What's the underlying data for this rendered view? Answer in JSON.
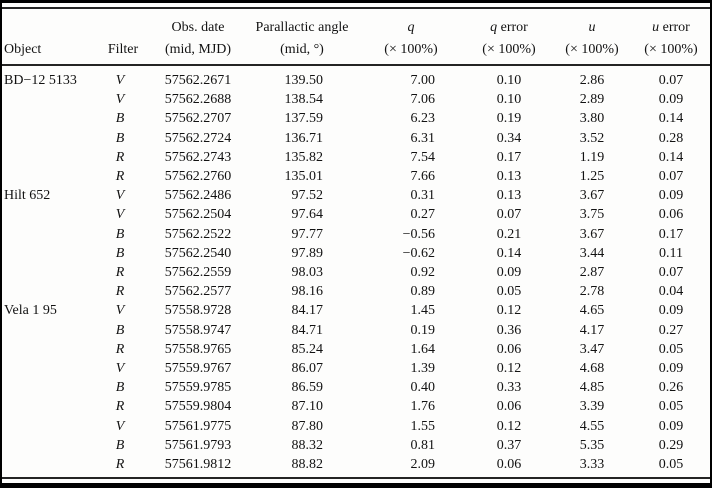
{
  "table": {
    "columns": [
      {
        "sym": "",
        "rest": "",
        "line2": "Object"
      },
      {
        "sym": "",
        "rest": "",
        "line2": "Filter"
      },
      {
        "sym": "",
        "rest": "Obs. date",
        "line2": "(mid, MJD)"
      },
      {
        "sym": "",
        "rest": "Parallactic angle",
        "line2": "(mid, °)"
      },
      {
        "sym": "q",
        "rest": "",
        "line2": "(× 100%)"
      },
      {
        "sym": "q",
        "rest": " error",
        "line2": "(× 100%)"
      },
      {
        "sym": "u",
        "rest": "",
        "line2": "(× 100%)"
      },
      {
        "sym": "u",
        "rest": " error",
        "line2": "(× 100%)"
      }
    ],
    "rows": [
      {
        "object": "BD−12 5133",
        "filter": "V",
        "mjd": "57562.2671",
        "pa": "139.50",
        "q": "7.00",
        "q_err": "0.10",
        "u": "2.86",
        "u_err": "0.07"
      },
      {
        "object": "",
        "filter": "V",
        "mjd": "57562.2688",
        "pa": "138.54",
        "q": "7.06",
        "q_err": "0.10",
        "u": "2.89",
        "u_err": "0.09"
      },
      {
        "object": "",
        "filter": "B",
        "mjd": "57562.2707",
        "pa": "137.59",
        "q": "6.23",
        "q_err": "0.19",
        "u": "3.80",
        "u_err": "0.14"
      },
      {
        "object": "",
        "filter": "B",
        "mjd": "57562.2724",
        "pa": "136.71",
        "q": "6.31",
        "q_err": "0.34",
        "u": "3.52",
        "u_err": "0.28"
      },
      {
        "object": "",
        "filter": "R",
        "mjd": "57562.2743",
        "pa": "135.82",
        "q": "7.54",
        "q_err": "0.17",
        "u": "1.19",
        "u_err": "0.14"
      },
      {
        "object": "",
        "filter": "R",
        "mjd": "57562.2760",
        "pa": "135.01",
        "q": "7.66",
        "q_err": "0.13",
        "u": "1.25",
        "u_err": "0.07"
      },
      {
        "object": "Hilt 652",
        "filter": "V",
        "mjd": "57562.2486",
        "pa": "97.52",
        "q": "0.31",
        "q_err": "0.13",
        "u": "3.67",
        "u_err": "0.09"
      },
      {
        "object": "",
        "filter": "V",
        "mjd": "57562.2504",
        "pa": "97.64",
        "q": "0.27",
        "q_err": "0.07",
        "u": "3.75",
        "u_err": "0.06"
      },
      {
        "object": "",
        "filter": "B",
        "mjd": "57562.2522",
        "pa": "97.77",
        "q": "−0.56",
        "q_err": "0.21",
        "u": "3.67",
        "u_err": "0.17"
      },
      {
        "object": "",
        "filter": "B",
        "mjd": "57562.2540",
        "pa": "97.89",
        "q": "−0.62",
        "q_err": "0.14",
        "u": "3.44",
        "u_err": "0.11"
      },
      {
        "object": "",
        "filter": "R",
        "mjd": "57562.2559",
        "pa": "98.03",
        "q": "0.92",
        "q_err": "0.09",
        "u": "2.87",
        "u_err": "0.07"
      },
      {
        "object": "",
        "filter": "R",
        "mjd": "57562.2577",
        "pa": "98.16",
        "q": "0.89",
        "q_err": "0.05",
        "u": "2.78",
        "u_err": "0.04"
      },
      {
        "object": "Vela 1 95",
        "filter": "V",
        "mjd": "57558.9728",
        "pa": "84.17",
        "q": "1.45",
        "q_err": "0.12",
        "u": "4.65",
        "u_err": "0.09"
      },
      {
        "object": "",
        "filter": "B",
        "mjd": "57558.9747",
        "pa": "84.71",
        "q": "0.19",
        "q_err": "0.36",
        "u": "4.17",
        "u_err": "0.27"
      },
      {
        "object": "",
        "filter": "R",
        "mjd": "57558.9765",
        "pa": "85.24",
        "q": "1.64",
        "q_err": "0.06",
        "u": "3.47",
        "u_err": "0.05"
      },
      {
        "object": "",
        "filter": "V",
        "mjd": "57559.9767",
        "pa": "86.07",
        "q": "1.39",
        "q_err": "0.12",
        "u": "4.68",
        "u_err": "0.09"
      },
      {
        "object": "",
        "filter": "B",
        "mjd": "57559.9785",
        "pa": "86.59",
        "q": "0.40",
        "q_err": "0.33",
        "u": "4.85",
        "u_err": "0.26"
      },
      {
        "object": "",
        "filter": "R",
        "mjd": "57559.9804",
        "pa": "87.10",
        "q": "1.76",
        "q_err": "0.06",
        "u": "3.39",
        "u_err": "0.05"
      },
      {
        "object": "",
        "filter": "V",
        "mjd": "57561.9775",
        "pa": "87.80",
        "q": "1.55",
        "q_err": "0.12",
        "u": "4.55",
        "u_err": "0.09"
      },
      {
        "object": "",
        "filter": "B",
        "mjd": "57561.9793",
        "pa": "88.32",
        "q": "0.81",
        "q_err": "0.37",
        "u": "5.35",
        "u_err": "0.29"
      },
      {
        "object": "",
        "filter": "R",
        "mjd": "57561.9812",
        "pa": "88.82",
        "q": "2.09",
        "q_err": "0.06",
        "u": "3.33",
        "u_err": "0.05"
      }
    ]
  }
}
